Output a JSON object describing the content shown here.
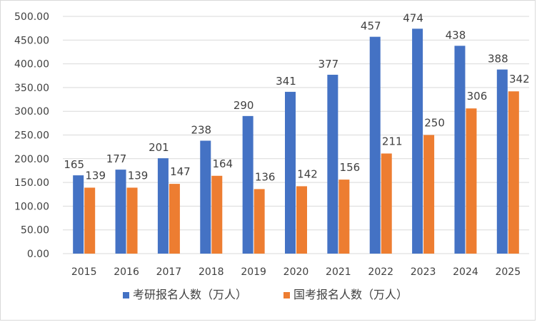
{
  "chart_data": {
    "type": "bar",
    "categories": [
      "2015",
      "2016",
      "2017",
      "2018",
      "2019",
      "2020",
      "2021",
      "2022",
      "2023",
      "2024",
      "2025"
    ],
    "series": [
      {
        "name": "考研报名人数（万人）",
        "values": [
          165,
          177,
          201,
          238,
          290,
          341,
          377,
          457,
          474,
          438,
          388
        ],
        "labels": [
          "165",
          "177",
          "201",
          "238",
          "290",
          "341",
          "377",
          "457",
          "474",
          "438",
          "388"
        ],
        "color": "#4472C4"
      },
      {
        "name": "国考报名人数（万人）",
        "values": [
          139,
          139,
          147,
          164,
          136,
          142,
          156,
          211,
          250,
          306,
          342
        ],
        "labels": [
          "139",
          "139",
          "147",
          "164",
          "136",
          "142",
          "156",
          "211",
          "250",
          "306",
          "342"
        ],
        "color": "#ED7D31"
      }
    ],
    "y_ticks": [
      "0.00",
      "50.00",
      "100.00",
      "150.00",
      "200.00",
      "250.00",
      "300.00",
      "350.00",
      "400.00",
      "450.00",
      "500.00"
    ],
    "ylim": [
      0,
      500
    ],
    "grid": true,
    "legend_position": "bottom",
    "title": "",
    "xlabel": "",
    "ylabel": ""
  },
  "colors": {
    "grid": "#d9d9d9",
    "text": "#404040",
    "border": "#d9d9d9"
  }
}
